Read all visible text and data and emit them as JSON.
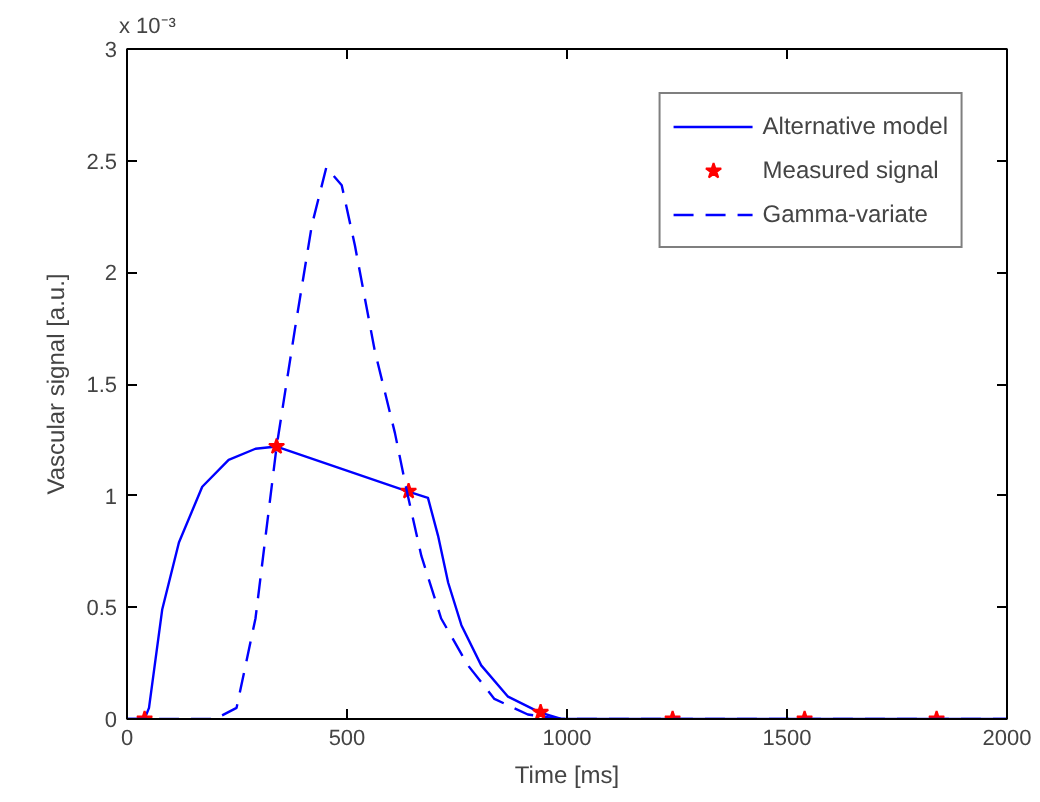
{
  "chart_data": {
    "type": "line",
    "xlabel": "Time [ms]",
    "ylabel": "Vascular signal [a.u.]",
    "annotations": [
      "x 10⁻³"
    ],
    "xlim": [
      0,
      2000
    ],
    "xticks": [
      0,
      500,
      1000,
      1500,
      2000
    ],
    "ylim": [
      0,
      3
    ],
    "yticks": [
      0,
      0.5,
      1,
      1.5,
      2,
      2.5,
      3
    ],
    "grid": false,
    "legend": "top right",
    "series": [
      {
        "name": "Alternative model",
        "line_style": "solid",
        "color": "#0000ff",
        "x": [
          0,
          40,
          50,
          80,
          118,
          171,
          231,
          292,
          340,
          636,
          684,
          707,
          730,
          760,
          805,
          866,
          938,
          987,
          2000
        ],
        "values": [
          0,
          0,
          0.05,
          0.49,
          0.79,
          1.04,
          1.16,
          1.21,
          1.22,
          1.02,
          0.99,
          0.82,
          0.61,
          0.42,
          0.24,
          0.1,
          0.03,
          0,
          0
        ]
      },
      {
        "name": "Measured signal",
        "type": "scatter",
        "marker": "star",
        "color": "#ff0000",
        "x": [
          40,
          340,
          640,
          940,
          1240,
          1540,
          1840
        ],
        "values": [
          0,
          1.22,
          1.02,
          0.03,
          0,
          0,
          0
        ]
      },
      {
        "name": "Gamma-variate",
        "line_style": "dashed",
        "color": "#0000ff",
        "x": [
          0,
          200,
          249,
          292,
          340,
          382,
          420,
          453,
          488,
          518,
          563,
          609,
          636,
          669,
          714,
          775,
          835,
          911,
          987,
          2000
        ],
        "values": [
          0,
          0,
          0.05,
          0.45,
          1.22,
          1.75,
          2.21,
          2.47,
          2.39,
          2.12,
          1.65,
          1.28,
          1.02,
          0.73,
          0.45,
          0.24,
          0.09,
          0.02,
          0,
          0
        ]
      }
    ]
  }
}
